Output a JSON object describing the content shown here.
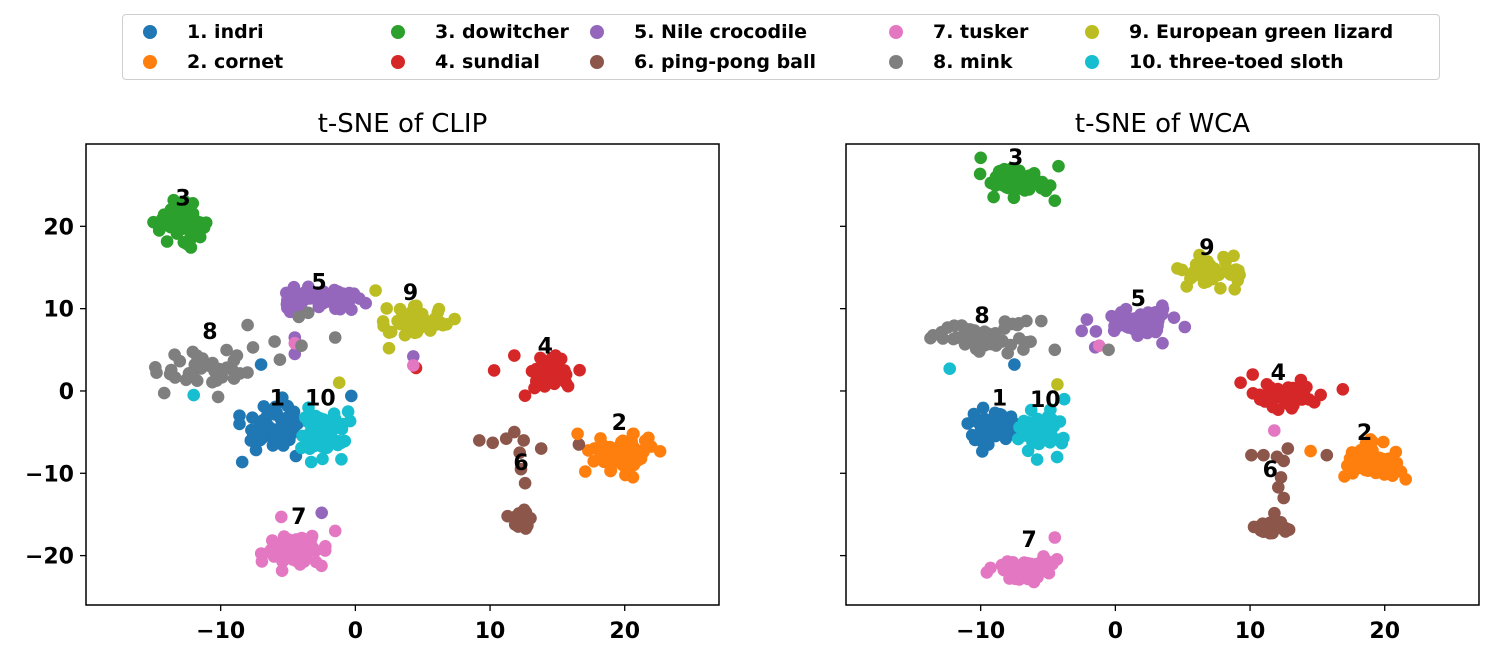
{
  "legend": {
    "items": [
      {
        "label": "1. indri",
        "color": "#1f77b4"
      },
      {
        "label": "2. cornet",
        "color": "#ff7f0e"
      },
      {
        "label": "3. dowitcher",
        "color": "#2ca02c"
      },
      {
        "label": "4. sundial",
        "color": "#d62728"
      },
      {
        "label": "5. Nile crocodile",
        "color": "#9467bd"
      },
      {
        "label": "6. ping-pong ball",
        "color": "#8c564b"
      },
      {
        "label": "7. tusker",
        "color": "#e377c2"
      },
      {
        "label": "8. mink",
        "color": "#7f7f7f"
      },
      {
        "label": "9. European green lizard",
        "color": "#bcbd22"
      },
      {
        "label": "10. three-toed sloth",
        "color": "#17becf"
      }
    ]
  },
  "chart_data": [
    {
      "type": "scatter",
      "title": "t-SNE of CLIP",
      "xlabel": "",
      "ylabel": "",
      "xlim": [
        -20,
        27
      ],
      "ylim": [
        -26,
        30
      ],
      "xticks": [
        -10,
        0,
        10,
        20
      ],
      "xtick_labels": [
        "−10",
        "0",
        "10",
        "20"
      ],
      "yticks": [
        -20,
        -10,
        0,
        10,
        20
      ],
      "ytick_labels": [
        "−20",
        "−10",
        "0",
        "10",
        "20"
      ],
      "show_yticklabels": true,
      "grid": false,
      "clusters": [
        {
          "class": 1,
          "label": "1",
          "center": [
            -6,
            -4.5
          ],
          "spread": [
            1.6,
            2.0
          ],
          "count": 55,
          "label_pos": [
            -5.8,
            -0.8
          ]
        },
        {
          "class": 2,
          "label": "2",
          "center": [
            20,
            -7.5
          ],
          "spread": [
            1.5,
            1.5
          ],
          "count": 75,
          "label_pos": [
            19.6,
            -3.8
          ]
        },
        {
          "class": 3,
          "label": "3",
          "center": [
            -13,
            20.5
          ],
          "spread": [
            1.2,
            1.3
          ],
          "count": 60,
          "label_pos": [
            -12.8,
            23.5
          ]
        },
        {
          "class": 4,
          "label": "4",
          "center": [
            14.5,
            2
          ],
          "spread": [
            1.3,
            1.2
          ],
          "count": 55,
          "label_pos": [
            14.1,
            5.5
          ]
        },
        {
          "class": 5,
          "label": "5",
          "center": [
            -2.5,
            11
          ],
          "spread": [
            2.0,
            1.0
          ],
          "count": 55,
          "label_pos": [
            -2.7,
            13.3
          ]
        },
        {
          "class": 6,
          "label": "6",
          "center": [
            12.5,
            -15.5
          ],
          "spread": [
            1.0,
            0.8
          ],
          "count": 30,
          "label_pos": [
            12.3,
            -8.6
          ]
        },
        {
          "class": 7,
          "label": "7",
          "center": [
            -4.5,
            -19.5
          ],
          "spread": [
            1.4,
            1.2
          ],
          "count": 55,
          "label_pos": [
            -4.2,
            -15.2
          ]
        },
        {
          "class": 8,
          "label": "8",
          "center": [
            -11,
            3
          ],
          "spread": [
            2.3,
            1.9
          ],
          "count": 40,
          "label_pos": [
            -10.8,
            7.3
          ]
        },
        {
          "class": 9,
          "label": "9",
          "center": [
            4.5,
            8.5
          ],
          "spread": [
            1.5,
            1.1
          ],
          "count": 55,
          "label_pos": [
            4.1,
            12.0
          ]
        },
        {
          "class": 10,
          "label": "10",
          "center": [
            -2.5,
            -5
          ],
          "spread": [
            1.2,
            2.0
          ],
          "count": 60,
          "label_pos": [
            -2.6,
            -0.8
          ]
        }
      ],
      "extra_points": [
        {
          "class": 6,
          "xy": [
            11.8,
            -5
          ]
        },
        {
          "class": 6,
          "xy": [
            12.5,
            -6
          ]
        },
        {
          "class": 6,
          "xy": [
            12.2,
            -7.5
          ]
        },
        {
          "class": 6,
          "xy": [
            12.3,
            -9.5
          ]
        },
        {
          "class": 6,
          "xy": [
            12.6,
            -11.2
          ]
        },
        {
          "class": 6,
          "xy": [
            9.2,
            -6
          ]
        },
        {
          "class": 6,
          "xy": [
            10.2,
            -6.3
          ]
        },
        {
          "class": 6,
          "xy": [
            13.8,
            -7
          ]
        },
        {
          "class": 6,
          "xy": [
            16.6,
            -6.5
          ]
        },
        {
          "class": 6,
          "xy": [
            11.2,
            -5.8
          ]
        },
        {
          "class": 2,
          "xy": [
            16.5,
            -5.2
          ]
        },
        {
          "class": 1,
          "xy": [
            -8.6,
            -3
          ]
        },
        {
          "class": 1,
          "xy": [
            -8.6,
            -4
          ]
        },
        {
          "class": 1,
          "xy": [
            -7,
            3.2
          ]
        },
        {
          "class": 1,
          "xy": [
            -0.3,
            -0.6
          ]
        },
        {
          "class": 5,
          "xy": [
            -4.5,
            4.5
          ]
        },
        {
          "class": 5,
          "xy": [
            -4.5,
            6.5
          ]
        },
        {
          "class": 5,
          "xy": [
            4.3,
            4.2
          ]
        },
        {
          "class": 5,
          "xy": [
            -2.5,
            -14.8
          ]
        },
        {
          "class": 4,
          "xy": [
            4.5,
            2.8
          ]
        },
        {
          "class": 4,
          "xy": [
            10.3,
            2.5
          ]
        },
        {
          "class": 4,
          "xy": [
            11.8,
            4.3
          ]
        },
        {
          "class": 7,
          "xy": [
            -4.5,
            5.8
          ]
        },
        {
          "class": 7,
          "xy": [
            4.3,
            3.1
          ]
        },
        {
          "class": 7,
          "xy": [
            -5.5,
            -15.3
          ]
        },
        {
          "class": 7,
          "xy": [
            -1.5,
            -17
          ]
        },
        {
          "class": 9,
          "xy": [
            -1.2,
            1.0
          ]
        },
        {
          "class": 9,
          "xy": [
            1.5,
            12.2
          ]
        },
        {
          "class": 9,
          "xy": [
            2.5,
            5.2
          ]
        },
        {
          "class": 8,
          "xy": [
            -4,
            5.5
          ]
        },
        {
          "class": 8,
          "xy": [
            -5.6,
            3.8
          ]
        },
        {
          "class": 8,
          "xy": [
            -1.5,
            6.5
          ]
        },
        {
          "class": 8,
          "xy": [
            -3.5,
            9.5
          ]
        },
        {
          "class": 8,
          "xy": [
            -4.2,
            9.0
          ]
        },
        {
          "class": 8,
          "xy": [
            -8,
            8
          ]
        },
        {
          "class": 8,
          "xy": [
            -6,
            6
          ]
        },
        {
          "class": 10,
          "xy": [
            -12,
            -0.5
          ]
        }
      ]
    },
    {
      "type": "scatter",
      "title": "t-SNE of WCA",
      "xlabel": "",
      "ylabel": "",
      "xlim": [
        -20,
        27
      ],
      "ylim": [
        -26,
        30
      ],
      "xticks": [
        -10,
        0,
        10,
        20
      ],
      "xtick_labels": [
        "−10",
        "0",
        "10",
        "20"
      ],
      "yticks": [
        -20,
        -10,
        0,
        10,
        20
      ],
      "ytick_labels": [],
      "show_yticklabels": false,
      "grid": false,
      "clusters": [
        {
          "class": 1,
          "label": "1",
          "center": [
            -9,
            -4.5
          ],
          "spread": [
            1.2,
            1.5
          ],
          "count": 50,
          "label_pos": [
            -8.6,
            -0.8
          ]
        },
        {
          "class": 2,
          "label": "2",
          "center": [
            19,
            -8.5
          ],
          "spread": [
            1.4,
            1.2
          ],
          "count": 75,
          "label_pos": [
            18.5,
            -5.0
          ]
        },
        {
          "class": 3,
          "label": "3",
          "center": [
            -7.5,
            25.5
          ],
          "spread": [
            1.5,
            1.2
          ],
          "count": 60,
          "label_pos": [
            -7.4,
            28.4
          ]
        },
        {
          "class": 4,
          "label": "4",
          "center": [
            12.5,
            -0.5
          ],
          "spread": [
            1.5,
            1.1
          ],
          "count": 55,
          "label_pos": [
            12.1,
            2.3
          ]
        },
        {
          "class": 5,
          "label": "5",
          "center": [
            2,
            8.5
          ],
          "spread": [
            2.0,
            1.0
          ],
          "count": 55,
          "label_pos": [
            1.7,
            11.3
          ]
        },
        {
          "class": 6,
          "label": "6",
          "center": [
            12,
            -16.5
          ],
          "spread": [
            1.0,
            0.7
          ],
          "count": 25,
          "label_pos": [
            11.5,
            -9.5
          ]
        },
        {
          "class": 7,
          "label": "7",
          "center": [
            -6.5,
            -21.5
          ],
          "spread": [
            1.5,
            0.9
          ],
          "count": 50,
          "label_pos": [
            -6.4,
            -18.0
          ]
        },
        {
          "class": 8,
          "label": "8",
          "center": [
            -10,
            6.5
          ],
          "spread": [
            2.5,
            1.3
          ],
          "count": 45,
          "label_pos": [
            -9.9,
            9.2
          ]
        },
        {
          "class": 9,
          "label": "9",
          "center": [
            7,
            14.5
          ],
          "spread": [
            1.5,
            1.2
          ],
          "count": 55,
          "label_pos": [
            6.8,
            17.5
          ]
        },
        {
          "class": 10,
          "label": "10",
          "center": [
            -5.5,
            -5
          ],
          "spread": [
            1.1,
            1.8
          ],
          "count": 55,
          "label_pos": [
            -5.2,
            -1.0
          ]
        }
      ],
      "extra_points": [
        {
          "class": 6,
          "xy": [
            10.1,
            -7.8
          ]
        },
        {
          "class": 6,
          "xy": [
            11,
            -7.8
          ]
        },
        {
          "class": 6,
          "xy": [
            12,
            -8
          ]
        },
        {
          "class": 6,
          "xy": [
            12.5,
            -8.5
          ]
        },
        {
          "class": 6,
          "xy": [
            12.8,
            -7
          ]
        },
        {
          "class": 6,
          "xy": [
            12.3,
            -10.5
          ]
        },
        {
          "class": 6,
          "xy": [
            12.1,
            -11.7
          ]
        },
        {
          "class": 6,
          "xy": [
            12.5,
            -13
          ]
        },
        {
          "class": 6,
          "xy": [
            15.7,
            -7.8
          ]
        },
        {
          "class": 2,
          "xy": [
            14.5,
            -7.3
          ]
        },
        {
          "class": 1,
          "xy": [
            -7.5,
            3.2
          ]
        },
        {
          "class": 1,
          "xy": [
            -10.5,
            -2.8
          ]
        },
        {
          "class": 5,
          "xy": [
            -1.5,
            5.3
          ]
        },
        {
          "class": 5,
          "xy": [
            3.5,
            5.8
          ]
        },
        {
          "class": 5,
          "xy": [
            -2.5,
            7.3
          ]
        },
        {
          "class": 4,
          "xy": [
            9.3,
            1
          ]
        },
        {
          "class": 4,
          "xy": [
            10.2,
            2
          ]
        },
        {
          "class": 7,
          "xy": [
            -1.2,
            5.5
          ]
        },
        {
          "class": 7,
          "xy": [
            11.8,
            -4.8
          ]
        },
        {
          "class": 7,
          "xy": [
            -4.5,
            -17.8
          ]
        },
        {
          "class": 9,
          "xy": [
            -4.3,
            0.8
          ]
        },
        {
          "class": 9,
          "xy": [
            5.3,
            12.7
          ]
        },
        {
          "class": 8,
          "xy": [
            -0.5,
            5
          ]
        },
        {
          "class": 8,
          "xy": [
            -4.5,
            5
          ]
        },
        {
          "class": 8,
          "xy": [
            -5.5,
            8.5
          ]
        },
        {
          "class": 10,
          "xy": [
            -12.3,
            2.7
          ]
        },
        {
          "class": 10,
          "xy": [
            -3.8,
            -1
          ]
        }
      ]
    }
  ]
}
